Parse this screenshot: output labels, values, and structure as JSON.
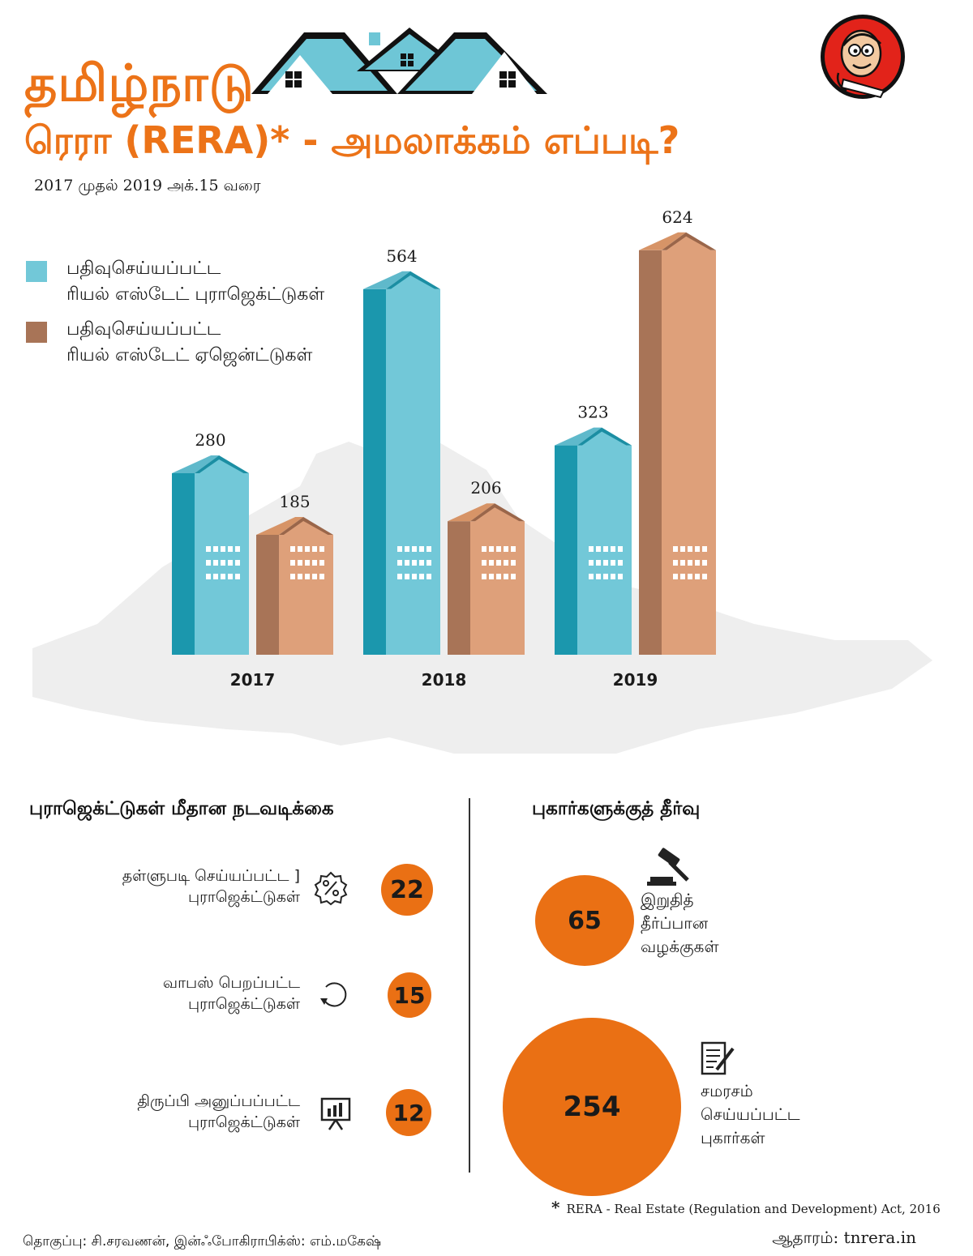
{
  "header": {
    "title_line1": "தமிழ்நாடு",
    "title_line2": "ரெரா (RERA)* - அமலாக்கம் எப்படி?",
    "period": "2017 முதல் 2019 அக்.15 வரை"
  },
  "colors": {
    "accent_orange": "#ec7318",
    "projects_teal": "#72c8d8",
    "projects_teal_dark": "#1b97ad",
    "agents_tan": "#dea07a",
    "agents_brown": "#a87457",
    "map_gray": "#eeeeee"
  },
  "legend": [
    {
      "line1": "பதிவுசெய்யப்பட்ட",
      "line2": "ரியல் எஸ்டேட் புராஜெக்ட்டுகள்",
      "color": "#72c8d8"
    },
    {
      "line1": "பதிவுசெய்யப்பட்ட",
      "line2": "ரியல் எஸ்டேட் ஏஜென்ட்டுகள்",
      "color": "#a87457"
    }
  ],
  "chart_data": {
    "type": "bar",
    "categories": [
      "2017",
      "2018",
      "2019"
    ],
    "series": [
      {
        "name": "பதிவுசெய்யப்பட்ட ரியல் எஸ்டேட் புராஜெக்ட்டுகள்",
        "values": [
          280,
          564,
          323
        ]
      },
      {
        "name": "பதிவுசெய்யப்பட்ட ரியல் எஸ்டேட் ஏஜென்ட்டுகள்",
        "values": [
          185,
          206,
          624
        ]
      }
    ],
    "title": "",
    "xlabel": "",
    "ylabel": "",
    "ylim": [
      0,
      624
    ],
    "grid": false,
    "legend_position": "top-left"
  },
  "project_actions": {
    "title": "புராஜெக்ட்டுகள் மீதான நடவடிக்கை",
    "items": [
      {
        "line1": "தள்ளுபடி செய்யப்பட்ட ]",
        "line2": "புராஜெக்ட்டுகள்",
        "value": "22",
        "icon": "percent-badge-icon"
      },
      {
        "line1": "வாபஸ் பெறப்பட்ட",
        "line2": "புராஜெக்ட்டுகள்",
        "value": "15",
        "icon": "undo-arrow-icon"
      },
      {
        "line1": "திருப்பி அனுப்பப்பட்ட",
        "line2": "புராஜெக்ட்டுகள்",
        "value": "12",
        "icon": "presentation-board-icon"
      }
    ]
  },
  "complaint_resolution": {
    "title": "புகார்களுக்குத் தீர்வு",
    "items": [
      {
        "value": "65",
        "line1": "இறுதித்",
        "line2": "தீர்ப்பான",
        "line3": "வழக்குகள்",
        "icon": "gavel-icon"
      },
      {
        "value": "254",
        "line1": "சமரசம்",
        "line2": "செய்யப்பட்ட",
        "line3": "புகார்கள்",
        "icon": "document-pen-icon"
      }
    ]
  },
  "footer": {
    "footnote": "RERA - Real Estate (Regulation and Development) Act, 2016",
    "footnote_mark": "*",
    "credits": "தொகுப்பு: சி.சரவணன், இன்ஃபோகிராபிக்ஸ்: எம்.மகேஷ்",
    "source": "ஆதாரம்: tnrera.in"
  }
}
